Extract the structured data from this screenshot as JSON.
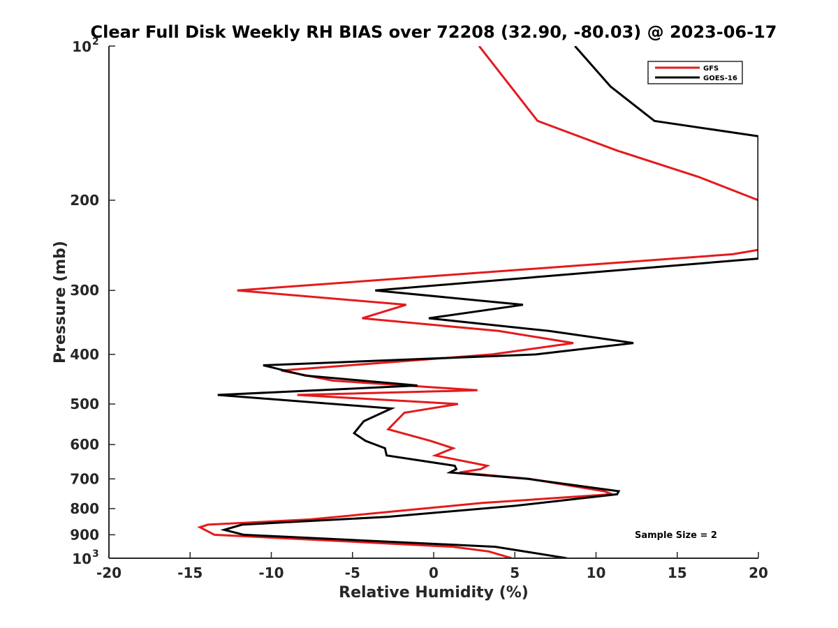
{
  "chart_data": {
    "type": "line",
    "title": "Clear Full Disk Weekly RH BIAS over 72208 (32.90, -80.03) @ 2023-06-17",
    "xlabel": "Relative Humidity (%)",
    "ylabel": "Pressure (mb)",
    "xlim": [
      -20,
      20
    ],
    "ylim": [
      100,
      1000
    ],
    "y_scale": "log",
    "y_reversed": true,
    "x_ticks": [
      "-20",
      "-15",
      "-10",
      "-5",
      "0",
      "5",
      "10",
      "15",
      "20"
    ],
    "y_ticks": [
      {
        "value": 100,
        "label": "10",
        "sup": "2"
      },
      {
        "value": 200,
        "label": "200",
        "sup": ""
      },
      {
        "value": 300,
        "label": "300",
        "sup": ""
      },
      {
        "value": 400,
        "label": "400",
        "sup": ""
      },
      {
        "value": 500,
        "label": "500",
        "sup": ""
      },
      {
        "value": 600,
        "label": "600",
        "sup": ""
      },
      {
        "value": 700,
        "label": "700",
        "sup": ""
      },
      {
        "value": 800,
        "label": "800",
        "sup": ""
      },
      {
        "value": 900,
        "label": "900",
        "sup": ""
      },
      {
        "value": 1000,
        "label": "10",
        "sup": "3"
      }
    ],
    "legend_position": "top-right",
    "grid": false,
    "annotation": "Sample Size = 2",
    "series": [
      {
        "name": "GFS",
        "color": "#e41a1c",
        "points": [
          [
            2.8,
            100
          ],
          [
            6.4,
            140
          ],
          [
            11.3,
            160
          ],
          [
            16.3,
            180
          ],
          [
            20.0,
            200
          ],
          [
            20.0,
            250
          ],
          [
            18.4,
            255
          ],
          [
            -12.1,
            300
          ],
          [
            -1.7,
            320
          ],
          [
            -4.4,
            340
          ],
          [
            4.0,
            360
          ],
          [
            8.6,
            380
          ],
          [
            3.6,
            400
          ],
          [
            -9.4,
            430
          ],
          [
            -6.2,
            450
          ],
          [
            2.7,
            470
          ],
          [
            -8.4,
            480
          ],
          [
            1.5,
            500
          ],
          [
            -1.8,
            520
          ],
          [
            -2.8,
            560
          ],
          [
            -0.2,
            590
          ],
          [
            1.2,
            610
          ],
          [
            0.1,
            630
          ],
          [
            3.3,
            660
          ],
          [
            2.9,
            670
          ],
          [
            1.6,
            680
          ],
          [
            5.9,
            700
          ],
          [
            10.5,
            740
          ],
          [
            11.0,
            750
          ],
          [
            3.0,
            780
          ],
          [
            -7.6,
            840
          ],
          [
            -13.9,
            860
          ],
          [
            -14.4,
            870
          ],
          [
            -13.5,
            900
          ],
          [
            1.2,
            950
          ],
          [
            3.4,
            970
          ],
          [
            4.8,
            1000
          ]
        ]
      },
      {
        "name": "GOES-16",
        "color": "#000000",
        "points": [
          [
            8.7,
            100
          ],
          [
            10.9,
            120
          ],
          [
            13.6,
            140
          ],
          [
            20.0,
            150
          ],
          [
            20.0,
            260
          ],
          [
            -3.6,
            300
          ],
          [
            5.5,
            320
          ],
          [
            -0.3,
            340
          ],
          [
            7.1,
            360
          ],
          [
            12.3,
            380
          ],
          [
            6.3,
            400
          ],
          [
            -10.5,
            420
          ],
          [
            -7.9,
            440
          ],
          [
            -1.0,
            460
          ],
          [
            -13.3,
            480
          ],
          [
            -2.6,
            510
          ],
          [
            -4.3,
            540
          ],
          [
            -4.9,
            570
          ],
          [
            -4.2,
            590
          ],
          [
            -3.0,
            610
          ],
          [
            -2.9,
            630
          ],
          [
            1.3,
            660
          ],
          [
            1.4,
            670
          ],
          [
            1.0,
            680
          ],
          [
            5.8,
            700
          ],
          [
            11.4,
            740
          ],
          [
            11.3,
            750
          ],
          [
            5.0,
            790
          ],
          [
            -2.8,
            830
          ],
          [
            -11.8,
            860
          ],
          [
            -12.9,
            880
          ],
          [
            -11.7,
            900
          ],
          [
            3.8,
            950
          ],
          [
            8.2,
            1000
          ]
        ]
      }
    ]
  }
}
